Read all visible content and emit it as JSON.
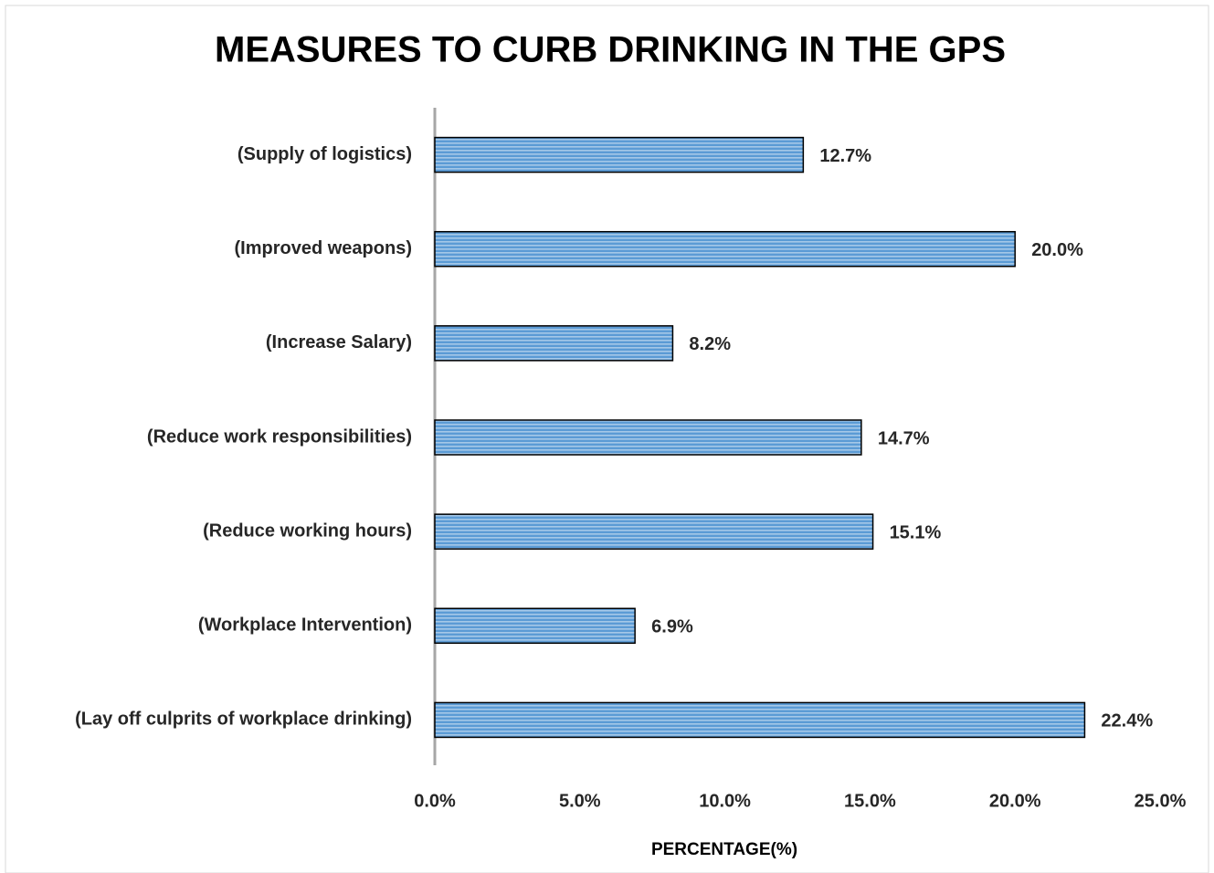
{
  "chart_data": {
    "type": "bar",
    "orientation": "horizontal",
    "title": "MEASURES TO CURB DRINKING IN THE GPS",
    "x_label": "PERCENTAGE(%)",
    "categories": [
      "(Supply of logistics)",
      "(Improved weapons)",
      "(Increase Salary)",
      "(Reduce work responsibilities)",
      "(Reduce working hours)",
      "(Workplace Intervention)",
      "(Lay off culprits of workplace drinking)"
    ],
    "values": [
      12.7,
      20.0,
      8.2,
      14.7,
      15.1,
      6.9,
      22.4
    ],
    "value_labels": [
      "12.7%",
      "20.0%",
      "8.2%",
      "14.7%",
      "15.1%",
      "6.9%",
      "22.4%"
    ],
    "color": "#5b9bd5",
    "xlim": [
      0,
      25
    ],
    "xticks": [
      {
        "value": 0,
        "label": "0.0%"
      },
      {
        "value": 5,
        "label": "5.0%"
      },
      {
        "value": 10,
        "label": "10.0%"
      },
      {
        "value": 15,
        "label": "15.0%"
      },
      {
        "value": 20,
        "label": "20.0%"
      },
      {
        "value": 25,
        "label": "25.0%"
      }
    ],
    "grid": false
  }
}
